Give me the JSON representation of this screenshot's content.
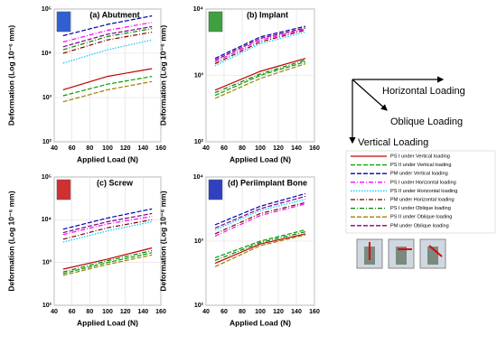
{
  "chart_data": [
    {
      "type": "line",
      "title": "(a) Abutment",
      "xlabel": "Applied Load (N)",
      "ylabel": "Deformation (Log 10⁻⁶ mm)",
      "x": [
        50,
        100,
        150
      ],
      "xlim": [
        40,
        160
      ],
      "xticks": [
        40,
        60,
        80,
        100,
        120,
        140,
        160
      ],
      "ylim": [
        100,
        100000
      ],
      "log_y": true,
      "grid": true,
      "yticks": [
        {
          "value": 100,
          "label": "10²"
        },
        {
          "value": 1000,
          "label": "10³"
        },
        {
          "value": 10000,
          "label": "10⁴"
        },
        {
          "value": 100000,
          "label": "10⁵"
        }
      ],
      "series": [
        {
          "values": [
            1500,
            3000,
            4500
          ]
        },
        {
          "values": [
            1100,
            2000,
            3000
          ]
        },
        {
          "values": [
            25000,
            45000,
            70000
          ]
        },
        {
          "values": [
            18000,
            33000,
            50000
          ]
        },
        {
          "values": [
            6000,
            12000,
            20000
          ]
        },
        {
          "values": [
            10000,
            20000,
            30000
          ]
        },
        {
          "values": [
            12000,
            24000,
            36000
          ]
        },
        {
          "values": [
            800,
            1500,
            2300
          ]
        },
        {
          "values": [
            14000,
            27000,
            40000
          ]
        }
      ]
    },
    {
      "type": "line",
      "title": "(b) Implant",
      "xlabel": "Applied Load (N)",
      "ylabel": "Deformation (Log 10⁻⁶ mm)",
      "x": [
        50,
        100,
        150
      ],
      "xlim": [
        40,
        160
      ],
      "xticks": [
        40,
        60,
        80,
        100,
        120,
        140,
        160
      ],
      "ylim": [
        100,
        10000
      ],
      "log_y": true,
      "grid": true,
      "yticks": [
        {
          "value": 100,
          "label": "10²"
        },
        {
          "value": 1000,
          "label": "10³"
        },
        {
          "value": 10000,
          "label": "10⁴"
        }
      ],
      "series": [
        {
          "values": [
            600,
            1150,
            1800
          ]
        },
        {
          "values": [
            500,
            1000,
            1600
          ]
        },
        {
          "values": [
            1800,
            3800,
            5500
          ]
        },
        {
          "values": [
            1600,
            3400,
            5000
          ]
        },
        {
          "values": [
            1400,
            3000,
            4500
          ]
        },
        {
          "values": [
            1500,
            3200,
            4800
          ]
        },
        {
          "values": [
            550,
            1050,
            1700
          ]
        },
        {
          "values": [
            450,
            900,
            1500
          ]
        },
        {
          "values": [
            1700,
            3600,
            5200
          ]
        }
      ]
    },
    {
      "type": "line",
      "title": "(c) Screw",
      "xlabel": "Applied Load (N)",
      "ylabel": "Deformation (Log 10⁻⁶ mm)",
      "x": [
        50,
        100,
        150
      ],
      "xlim": [
        40,
        160
      ],
      "xticks": [
        40,
        60,
        80,
        100,
        120,
        140,
        160
      ],
      "ylim": [
        100,
        100000
      ],
      "log_y": true,
      "grid": true,
      "yticks": [
        {
          "value": 100,
          "label": "10²"
        },
        {
          "value": 1000,
          "label": "10³"
        },
        {
          "value": 10000,
          "label": "10⁴"
        },
        {
          "value": 100000,
          "label": "10⁵"
        }
      ],
      "series": [
        {
          "values": [
            700,
            1200,
            2200
          ]
        },
        {
          "values": [
            550,
            1000,
            1700
          ]
        },
        {
          "values": [
            6000,
            11000,
            18000
          ]
        },
        {
          "values": [
            4500,
            8000,
            12000
          ]
        },
        {
          "values": [
            3000,
            5500,
            9000
          ]
        },
        {
          "values": [
            3500,
            6500,
            10000
          ]
        },
        {
          "values": [
            600,
            1100,
            1900
          ]
        },
        {
          "values": [
            500,
            900,
            1500
          ]
        },
        {
          "values": [
            5000,
            9000,
            14000
          ]
        }
      ]
    },
    {
      "type": "line",
      "title": "(d) Periimplant Bone",
      "xlabel": "Applied Load (N)",
      "ylabel": "Deformation (Log 10⁻⁶ mm)",
      "x": [
        50,
        100,
        150
      ],
      "xlim": [
        40,
        160
      ],
      "xticks": [
        40,
        60,
        80,
        100,
        120,
        140,
        160
      ],
      "ylim": [
        100,
        10000
      ],
      "log_y": true,
      "grid": true,
      "yticks": [
        {
          "value": 100,
          "label": "10²"
        },
        {
          "value": 1000,
          "label": "10³"
        },
        {
          "value": 10000,
          "label": "10⁴"
        }
      ],
      "series": [
        {
          "values": [
            450,
            900,
            1300
          ]
        },
        {
          "values": [
            550,
            1000,
            1500
          ]
        },
        {
          "values": [
            1800,
            3500,
            5500
          ]
        },
        {
          "values": [
            1200,
            2500,
            3800
          ]
        },
        {
          "values": [
            1500,
            3000,
            4500
          ]
        },
        {
          "values": [
            1300,
            2700,
            4000
          ]
        },
        {
          "values": [
            500,
            950,
            1400
          ]
        },
        {
          "values": [
            400,
            850,
            1250
          ]
        },
        {
          "values": [
            1600,
            3200,
            5000
          ]
        }
      ]
    }
  ],
  "legend": [
    {
      "name": "PS I under Vertical loading",
      "color": "#c00000",
      "dash": "solid"
    },
    {
      "name": "PS II under Vertical loading",
      "color": "#00a000",
      "dash": "dashed"
    },
    {
      "name": "PM under Vertical loading",
      "color": "#0000b0",
      "dash": "dashed"
    },
    {
      "name": "PS I under Horizontal loading",
      "color": "#ff00ff",
      "dash": "dashdot"
    },
    {
      "name": "PS II under Horizontal loading",
      "color": "#00c8ff",
      "dash": "dotted"
    },
    {
      "name": "PM under Horizontal loading",
      "color": "#800000",
      "dash": "dashdot"
    },
    {
      "name": "PS I under Oblique loading",
      "color": "#008000",
      "dash": "dashdot"
    },
    {
      "name": "PS II under Oblique loading",
      "color": "#a08000",
      "dash": "dashed"
    },
    {
      "name": "PM under Oblique loading",
      "color": "#800080",
      "dash": "dashed"
    }
  ],
  "loading_diagram": {
    "horizontal": "Horizontal Loading",
    "oblique": "Oblique Loading",
    "vertical": "Vertical Loading"
  }
}
